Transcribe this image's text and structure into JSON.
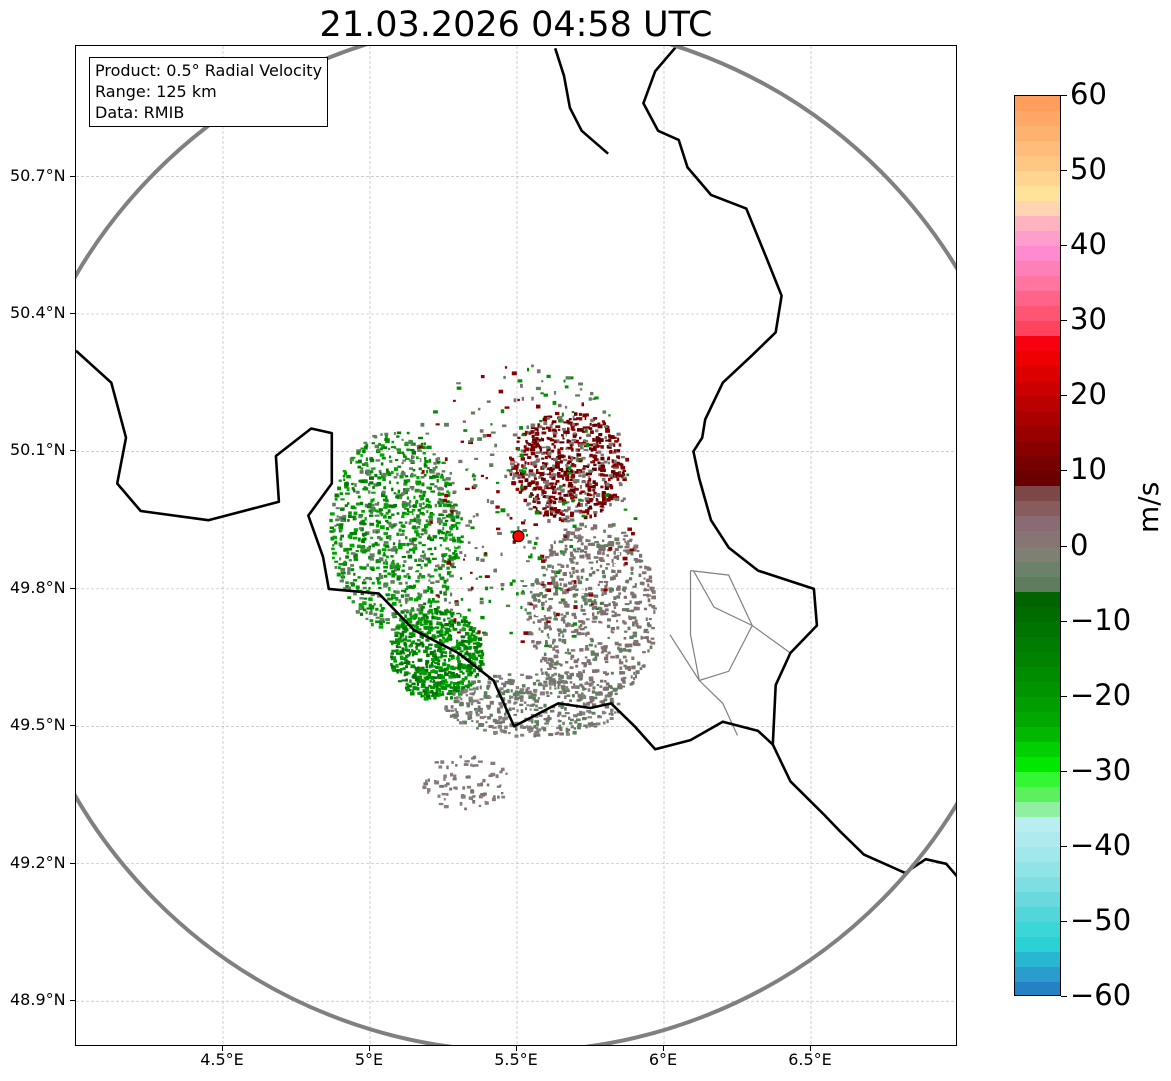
{
  "title": "21.03.2026 04:58 UTC",
  "info": {
    "product": "Product: 0.5° Radial Velocity",
    "range": "Range: 125 km",
    "data": "Data: RMIB"
  },
  "map": {
    "lon_range": [
      4.0,
      7.0
    ],
    "lat_range": [
      48.8,
      50.985
    ],
    "radar_site": {
      "lon": 5.505,
      "lat": 49.915,
      "marker_color": "#ff0000"
    },
    "range_ring_km": 125,
    "range_ring_color": "#808080",
    "border_color": "#000000",
    "subregion_border_color": "#808080",
    "gridlines": true,
    "lat_ticks": [
      {
        "value": 50.7,
        "label": "50.7°N"
      },
      {
        "value": 50.4,
        "label": "50.4°N"
      },
      {
        "value": 50.1,
        "label": "50.1°N"
      },
      {
        "value": 49.8,
        "label": "49.8°N"
      },
      {
        "value": 49.5,
        "label": "49.5°N"
      },
      {
        "value": 49.2,
        "label": "49.2°N"
      },
      {
        "value": 48.9,
        "label": "48.9°N"
      }
    ],
    "lon_ticks": [
      {
        "value": 4.5,
        "label": "4.5°E"
      },
      {
        "value": 5.0,
        "label": "5°E"
      },
      {
        "value": 5.5,
        "label": "5.5°E"
      },
      {
        "value": 6.0,
        "label": "6°E"
      },
      {
        "value": 6.5,
        "label": "6.5°E"
      }
    ],
    "echo_regions": [
      {
        "lon": 5.08,
        "lat": 49.93,
        "rx": 0.22,
        "ry": 0.22,
        "count": 900,
        "palette": [
          "#009100",
          "#007c00",
          "#5e7f5e",
          "#00a600"
        ]
      },
      {
        "lon": 5.22,
        "lat": 49.66,
        "rx": 0.16,
        "ry": 0.1,
        "count": 600,
        "palette": [
          "#008f00",
          "#007300",
          "#00a000"
        ]
      },
      {
        "lon": 5.67,
        "lat": 50.07,
        "rx": 0.2,
        "ry": 0.12,
        "count": 650,
        "palette": [
          "#7a0000",
          "#8b0000",
          "#5e0000",
          "#7f7373"
        ]
      },
      {
        "lon": 5.75,
        "lat": 49.75,
        "rx": 0.22,
        "ry": 0.2,
        "count": 650,
        "palette": [
          "#7d7070",
          "#877272",
          "#7f6f6f",
          "#5e7f5e"
        ]
      },
      {
        "lon": 5.55,
        "lat": 49.55,
        "rx": 0.3,
        "ry": 0.07,
        "count": 400,
        "palette": [
          "#7b7373",
          "#5e7f5e",
          "#878080"
        ]
      },
      {
        "lon": 5.32,
        "lat": 49.38,
        "rx": 0.15,
        "ry": 0.06,
        "count": 80,
        "palette": [
          "#8b7b7b",
          "#7d7070"
        ]
      },
      {
        "lon": 5.5,
        "lat": 49.98,
        "rx": 0.4,
        "ry": 0.32,
        "count": 500,
        "palette": [
          "#ffffff",
          "#5e7f5e",
          "#7f6f6f",
          "#008f00",
          "#8b0000"
        ]
      }
    ]
  },
  "colorbar": {
    "label": "m/s",
    "min": -60,
    "max": 60,
    "tick_labels": [
      {
        "value": 60,
        "label": "60"
      },
      {
        "value": 50,
        "label": "50"
      },
      {
        "value": 40,
        "label": "40"
      },
      {
        "value": 30,
        "label": "30"
      },
      {
        "value": 20,
        "label": "20"
      },
      {
        "value": 10,
        "label": "10"
      },
      {
        "value": 0,
        "label": "0"
      },
      {
        "value": -10,
        "label": "−10"
      },
      {
        "value": -20,
        "label": "−20"
      },
      {
        "value": -30,
        "label": "−30"
      },
      {
        "value": -40,
        "label": "−40"
      },
      {
        "value": -50,
        "label": "−50"
      },
      {
        "value": -60,
        "label": "−60"
      }
    ],
    "segments": [
      {
        "from": 58,
        "to": 60,
        "color": "#ff9d5c"
      },
      {
        "from": 56,
        "to": 58,
        "color": "#ffa766"
      },
      {
        "from": 54,
        "to": 56,
        "color": "#ffb270"
      },
      {
        "from": 52,
        "to": 54,
        "color": "#ffbc7a"
      },
      {
        "from": 50,
        "to": 52,
        "color": "#ffc684"
      },
      {
        "from": 48,
        "to": 50,
        "color": "#ffd58f"
      },
      {
        "from": 46,
        "to": 48,
        "color": "#ffe39a"
      },
      {
        "from": 44,
        "to": 46,
        "color": "#ffd4b0"
      },
      {
        "from": 42,
        "to": 44,
        "color": "#ffb3c0"
      },
      {
        "from": 40,
        "to": 42,
        "color": "#ff9ecd"
      },
      {
        "from": 38,
        "to": 40,
        "color": "#ff8ad0"
      },
      {
        "from": 36,
        "to": 38,
        "color": "#ff7fb8"
      },
      {
        "from": 34,
        "to": 36,
        "color": "#ff74a0"
      },
      {
        "from": 32,
        "to": 34,
        "color": "#ff6488"
      },
      {
        "from": 30,
        "to": 32,
        "color": "#ff5574"
      },
      {
        "from": 28,
        "to": 30,
        "color": "#ff4460"
      },
      {
        "from": 26,
        "to": 28,
        "color": "#f70010"
      },
      {
        "from": 24,
        "to": 26,
        "color": "#ee0000"
      },
      {
        "from": 22,
        "to": 24,
        "color": "#de0000"
      },
      {
        "from": 20,
        "to": 22,
        "color": "#cc0000"
      },
      {
        "from": 18,
        "to": 20,
        "color": "#bb0000"
      },
      {
        "from": 16,
        "to": 18,
        "color": "#aa0000"
      },
      {
        "from": 14,
        "to": 16,
        "color": "#990000"
      },
      {
        "from": 12,
        "to": 14,
        "color": "#880000"
      },
      {
        "from": 10,
        "to": 12,
        "color": "#770000"
      },
      {
        "from": 8,
        "to": 10,
        "color": "#6b0000"
      },
      {
        "from": 6,
        "to": 8,
        "color": "#7e4747"
      },
      {
        "from": 4,
        "to": 6,
        "color": "#885c5c"
      },
      {
        "from": 2,
        "to": 4,
        "color": "#8a6a73"
      },
      {
        "from": 0,
        "to": 2,
        "color": "#877475"
      },
      {
        "from": -2,
        "to": 0,
        "color": "#7f7f74"
      },
      {
        "from": -4,
        "to": -2,
        "color": "#698269"
      },
      {
        "from": -6,
        "to": -4,
        "color": "#5d7d5d"
      },
      {
        "from": -8,
        "to": -6,
        "color": "#006400"
      },
      {
        "from": -10,
        "to": -8,
        "color": "#006c00"
      },
      {
        "from": -12,
        "to": -10,
        "color": "#007400"
      },
      {
        "from": -14,
        "to": -12,
        "color": "#007c00"
      },
      {
        "from": -16,
        "to": -14,
        "color": "#008400"
      },
      {
        "from": -18,
        "to": -16,
        "color": "#008c00"
      },
      {
        "from": -20,
        "to": -18,
        "color": "#009400"
      },
      {
        "from": -22,
        "to": -20,
        "color": "#009e00"
      },
      {
        "from": -24,
        "to": -22,
        "color": "#00a800"
      },
      {
        "from": -26,
        "to": -24,
        "color": "#00b800"
      },
      {
        "from": -28,
        "to": -26,
        "color": "#00d000"
      },
      {
        "from": -30,
        "to": -28,
        "color": "#00e800"
      },
      {
        "from": -32,
        "to": -30,
        "color": "#33f733"
      },
      {
        "from": -34,
        "to": -32,
        "color": "#5cf05c"
      },
      {
        "from": -36,
        "to": -34,
        "color": "#8ef0a0"
      },
      {
        "from": -38,
        "to": -36,
        "color": "#b8eef0"
      },
      {
        "from": -40,
        "to": -38,
        "color": "#aeeaee"
      },
      {
        "from": -42,
        "to": -40,
        "color": "#a0e8ea"
      },
      {
        "from": -44,
        "to": -42,
        "color": "#90e4e6"
      },
      {
        "from": -46,
        "to": -44,
        "color": "#7edfe2"
      },
      {
        "from": -48,
        "to": -46,
        "color": "#6ad9dd"
      },
      {
        "from": -50,
        "to": -48,
        "color": "#52d6da"
      },
      {
        "from": -52,
        "to": -50,
        "color": "#3ad6d8"
      },
      {
        "from": -54,
        "to": -52,
        "color": "#2ad2d6"
      },
      {
        "from": -56,
        "to": -54,
        "color": "#28b6d0"
      },
      {
        "from": -58,
        "to": -56,
        "color": "#2a9ccd"
      },
      {
        "from": -60,
        "to": -58,
        "color": "#2481c4"
      }
    ]
  }
}
